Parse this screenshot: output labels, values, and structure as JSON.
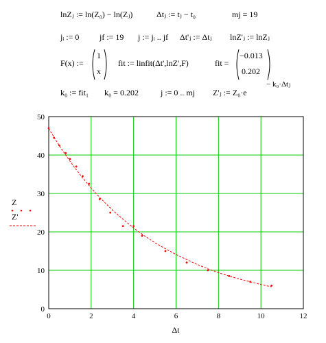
{
  "worksheet": {
    "row1": {
      "lnz_def": "lnZⱼ := ln(Z₀) − ln(Zⱼ)",
      "dt_def": "Δtⱼ := tⱼ − t₀",
      "mj_def": "mj = 19"
    },
    "row2": {
      "ji": "jᵢ := 0",
      "jf": "jf := 19",
      "j_range": "j := jᵢ .. jf",
      "dtp": "Δt'ⱼ := Δtⱼ",
      "lnzp": "lnZ'ⱼ := lnZⱼ"
    },
    "row3": {
      "F_lhs": "F(x) :=",
      "F_top": "1",
      "F_bot": "x",
      "fit_def": "fit := linfit(Δt',lnZ',F)",
      "fit_lhs": "fit =",
      "fit_top": "−0.013",
      "fit_bot": "0.202"
    },
    "row4": {
      "k0_def": "k₀ := fit₁",
      "k0_val": "k₀ = 0.202",
      "j_range2": "j := 0 .. mj",
      "zp_lhs": "Z'ⱼ := Z₀·e",
      "zp_exp": "− k₀·Δtⱼ"
    }
  },
  "chart_data": {
    "type": "scatter",
    "xlabel": "Δt",
    "ylabel": "",
    "xlim": [
      0,
      12
    ],
    "ylim": [
      0,
      50
    ],
    "xticks": [
      0,
      2,
      4,
      6,
      8,
      10,
      12
    ],
    "yticks": [
      0,
      10,
      20,
      30,
      40,
      50
    ],
    "grid": true,
    "grid_color": "#00cc00",
    "legend_position": "left",
    "series": [
      {
        "name": "Z",
        "style": "points",
        "color": "#ff0000",
        "x": [
          0,
          0.25,
          0.5,
          0.8,
          1.0,
          1.3,
          1.6,
          1.9,
          2.4,
          2.9,
          3.5,
          4.0,
          4.4,
          5.5,
          6.5,
          7.5,
          8.5,
          9.5,
          10.5
        ],
        "y": [
          47,
          44.5,
          42.5,
          40.5,
          39,
          37,
          34.5,
          32.5,
          28.5,
          25,
          21.5,
          21.5,
          19,
          15,
          12,
          10,
          8.5,
          7,
          6
        ]
      },
      {
        "name": "Z'",
        "style": "dashed-line",
        "color": "#ff0000",
        "x": [
          0,
          0.5,
          1,
          1.5,
          2,
          2.5,
          3,
          3.5,
          4,
          4.5,
          5,
          5.5,
          6,
          6.5,
          7,
          7.5,
          8,
          8.5,
          9,
          9.5,
          10,
          10.5
        ],
        "y": [
          46.9,
          42.4,
          38.4,
          34.7,
          31.4,
          28.4,
          25.7,
          23.3,
          21.0,
          19.0,
          17.2,
          15.6,
          14.1,
          12.8,
          11.5,
          10.4,
          9.4,
          8.5,
          7.7,
          7.0,
          6.3,
          5.7
        ]
      }
    ]
  }
}
